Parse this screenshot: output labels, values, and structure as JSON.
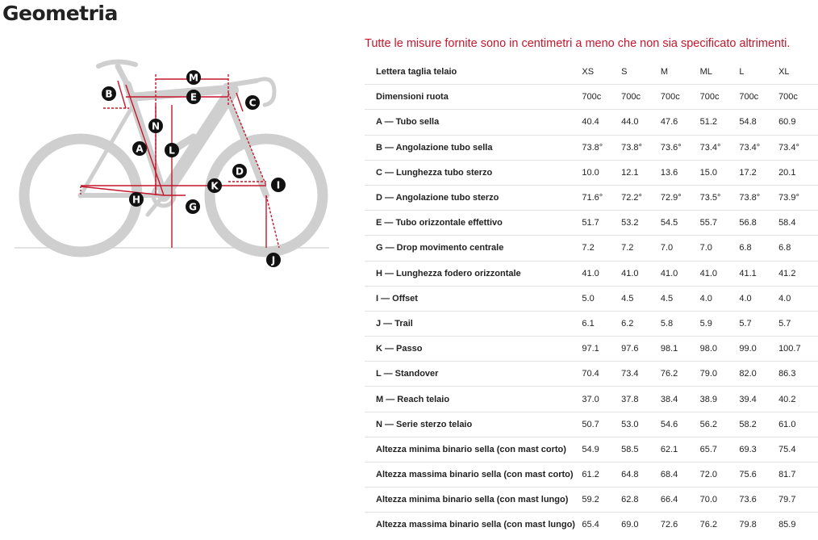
{
  "page": {
    "title": "Geometria"
  },
  "note": "Tutte le misure fornite sono in centimetri a meno che non sia specificato altrimenti.",
  "diagram": {
    "markers": [
      "A",
      "B",
      "C",
      "D",
      "E",
      "G",
      "H",
      "I",
      "J",
      "K",
      "L",
      "M",
      "N"
    ],
    "colors": {
      "measure_line": "#c4172c",
      "marker_fill": "#111111",
      "bike": "#cfcfcf"
    }
  },
  "table": {
    "header_label": "Lettera taglia telaio",
    "sizes": [
      "XS",
      "S",
      "M",
      "ML",
      "L",
      "XL"
    ],
    "rows": [
      {
        "label": "Dimensioni ruota",
        "values": [
          "700c",
          "700c",
          "700c",
          "700c",
          "700c",
          "700c"
        ]
      },
      {
        "label": "A — Tubo sella",
        "values": [
          "40.4",
          "44.0",
          "47.6",
          "51.2",
          "54.8",
          "60.9"
        ]
      },
      {
        "label": "B — Angolazione tubo sella",
        "values": [
          "73.8°",
          "73.8°",
          "73.6°",
          "73.4°",
          "73.4°",
          "73.4°"
        ]
      },
      {
        "label": "C — Lunghezza tubo sterzo",
        "values": [
          "10.0",
          "12.1",
          "13.6",
          "15.0",
          "17.2",
          "20.1"
        ]
      },
      {
        "label": "D — Angolazione tubo sterzo",
        "values": [
          "71.6°",
          "72.2°",
          "72.9°",
          "73.5°",
          "73.8°",
          "73.9°"
        ]
      },
      {
        "label": "E — Tubo orizzontale effettivo",
        "values": [
          "51.7",
          "53.2",
          "54.5",
          "55.7",
          "56.8",
          "58.4"
        ]
      },
      {
        "label": "G — Drop movimento centrale",
        "values": [
          "7.2",
          "7.2",
          "7.0",
          "7.0",
          "6.8",
          "6.8"
        ]
      },
      {
        "label": "H — Lunghezza fodero orizzontale",
        "values": [
          "41.0",
          "41.0",
          "41.0",
          "41.0",
          "41.1",
          "41.2"
        ]
      },
      {
        "label": "I — Offset",
        "values": [
          "5.0",
          "4.5",
          "4.5",
          "4.0",
          "4.0",
          "4.0"
        ]
      },
      {
        "label": "J — Trail",
        "values": [
          "6.1",
          "6.2",
          "5.8",
          "5.9",
          "5.7",
          "5.7"
        ]
      },
      {
        "label": "K — Passo",
        "values": [
          "97.1",
          "97.6",
          "98.1",
          "98.0",
          "99.0",
          "100.7"
        ]
      },
      {
        "label": "L — Standover",
        "values": [
          "70.4",
          "73.4",
          "76.2",
          "79.0",
          "82.0",
          "86.3"
        ]
      },
      {
        "label": "M — Reach telaio",
        "values": [
          "37.0",
          "37.8",
          "38.4",
          "38.9",
          "39.4",
          "40.2"
        ]
      },
      {
        "label": "N — Serie sterzo telaio",
        "values": [
          "50.7",
          "53.0",
          "54.6",
          "56.2",
          "58.2",
          "61.0"
        ]
      },
      {
        "label": "Altezza minima binario sella (con mast corto)",
        "values": [
          "54.9",
          "58.5",
          "62.1",
          "65.7",
          "69.3",
          "75.4"
        ]
      },
      {
        "label": "Altezza massima binario sella (con mast corto)",
        "values": [
          "61.2",
          "64.8",
          "68.4",
          "72.0",
          "75.6",
          "81.7"
        ]
      },
      {
        "label": "Altezza minima binario sella (con mast lungo)",
        "values": [
          "59.2",
          "62.8",
          "66.4",
          "70.0",
          "73.6",
          "79.7"
        ]
      },
      {
        "label": "Altezza massima binario sella (con mast lungo)",
        "values": [
          "65.4",
          "69.0",
          "72.6",
          "76.2",
          "79.8",
          "85.9"
        ]
      }
    ]
  }
}
